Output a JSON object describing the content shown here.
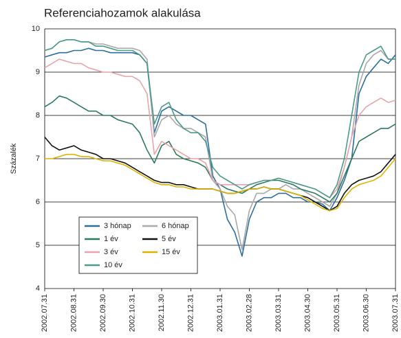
{
  "chart_data": {
    "type": "line",
    "title": "Referenciahozamok alakulása",
    "y_label": "Százalék",
    "categories": [
      "2002.07.31",
      null,
      null,
      null,
      "2002.08.31",
      null,
      null,
      null,
      "2002.09.30",
      null,
      null,
      null,
      "2002.10.31",
      null,
      null,
      null,
      "2002.11.30",
      null,
      null,
      null,
      "2002.12.31",
      null,
      null,
      null,
      "2003.01.31",
      null,
      null,
      null,
      "2003.02.28",
      null,
      null,
      null,
      "2003.03.31",
      null,
      null,
      null,
      "2003.04.30",
      null,
      null,
      null,
      "2003.05.31",
      null,
      null,
      null,
      "2003.06.30",
      null,
      null,
      null,
      "2003.07.31"
    ],
    "ylim": [
      4,
      10
    ],
    "yticks": [
      4,
      5,
      6,
      7,
      8,
      9,
      10
    ],
    "grid": true,
    "legend": "lower left",
    "series": [
      {
        "name": "3 hónap",
        "color": "#2b6e9b",
        "values": [
          9.35,
          9.4,
          9.45,
          9.45,
          9.5,
          9.5,
          9.55,
          9.5,
          9.5,
          9.45,
          9.45,
          9.45,
          9.45,
          9.4,
          9.2,
          7.6,
          8.1,
          8.2,
          8.1,
          8.0,
          8.0,
          7.9,
          7.8,
          6.6,
          6.3,
          5.6,
          5.3,
          4.75,
          5.6,
          6.0,
          6.1,
          6.1,
          6.2,
          6.2,
          6.1,
          6.1,
          6.0,
          6.0,
          5.95,
          5.8,
          6.1,
          6.5,
          7.0,
          8.5,
          8.9,
          9.1,
          9.3,
          9.2,
          9.4
        ]
      },
      {
        "name": "6 hónap",
        "color": "#a8a8a8",
        "values": [
          9.5,
          9.55,
          9.7,
          9.75,
          9.75,
          9.7,
          9.7,
          9.65,
          9.65,
          9.6,
          9.55,
          9.55,
          9.55,
          9.5,
          9.3,
          7.5,
          7.9,
          8.0,
          7.8,
          7.7,
          7.7,
          7.6,
          7.5,
          6.5,
          6.3,
          5.9,
          5.7,
          4.9,
          5.8,
          6.2,
          6.2,
          6.3,
          6.3,
          6.4,
          6.3,
          6.3,
          6.2,
          6.1,
          6.0,
          5.9,
          6.2,
          6.8,
          7.5,
          8.7,
          9.2,
          9.4,
          9.5,
          9.3,
          9.3
        ]
      },
      {
        "name": "1 év",
        "color": "#2d7a5e",
        "values": [
          8.2,
          8.3,
          8.45,
          8.4,
          8.3,
          8.2,
          8.1,
          8.1,
          8.0,
          8.0,
          7.9,
          7.85,
          7.8,
          7.6,
          7.2,
          6.9,
          7.3,
          7.4,
          7.1,
          7.0,
          6.95,
          6.9,
          6.8,
          6.5,
          6.4,
          6.3,
          6.25,
          6.2,
          6.3,
          6.4,
          6.45,
          6.5,
          6.5,
          6.45,
          6.4,
          6.3,
          6.25,
          6.2,
          6.1,
          6.0,
          6.2,
          6.6,
          7.0,
          7.4,
          7.5,
          7.6,
          7.7,
          7.7,
          7.8
        ]
      },
      {
        "name": "5 év",
        "color": "#111111",
        "values": [
          7.5,
          7.3,
          7.2,
          7.25,
          7.3,
          7.2,
          7.15,
          7.1,
          7.0,
          7.0,
          6.95,
          6.9,
          6.8,
          6.7,
          6.6,
          6.5,
          6.45,
          6.45,
          6.4,
          6.4,
          6.35,
          6.3,
          6.3,
          6.3,
          6.25,
          6.2,
          6.2,
          6.25,
          6.3,
          6.3,
          6.35,
          6.3,
          6.3,
          6.25,
          6.2,
          6.15,
          6.1,
          6.0,
          5.9,
          5.8,
          5.9,
          6.2,
          6.4,
          6.5,
          6.55,
          6.6,
          6.7,
          6.9,
          7.1
        ]
      },
      {
        "name": "3 év",
        "color": "#e8a4ab",
        "values": [
          9.1,
          9.2,
          9.3,
          9.25,
          9.2,
          9.2,
          9.1,
          9.05,
          9.0,
          9.0,
          8.95,
          8.9,
          8.9,
          8.8,
          8.5,
          7.1,
          7.4,
          7.3,
          7.2,
          7.1,
          7.0,
          7.0,
          6.9,
          6.5,
          6.4,
          6.4,
          6.4,
          6.4,
          6.4,
          6.45,
          6.5,
          6.5,
          6.55,
          6.5,
          6.45,
          6.4,
          6.35,
          6.3,
          6.2,
          6.1,
          6.3,
          6.8,
          7.5,
          8.0,
          8.2,
          8.3,
          8.4,
          8.3,
          8.35
        ]
      },
      {
        "name": "15 év",
        "color": "#dcb400",
        "values": [
          7.0,
          7.0,
          7.05,
          7.1,
          7.1,
          7.05,
          7.05,
          7.0,
          6.95,
          6.95,
          6.9,
          6.85,
          6.75,
          6.65,
          6.55,
          6.45,
          6.4,
          6.4,
          6.35,
          6.35,
          6.3,
          6.3,
          6.3,
          6.3,
          6.25,
          6.2,
          6.2,
          6.25,
          6.3,
          6.3,
          6.35,
          6.3,
          6.3,
          6.25,
          6.2,
          6.15,
          6.05,
          5.95,
          5.85,
          5.8,
          5.85,
          6.1,
          6.3,
          6.4,
          6.45,
          6.5,
          6.6,
          6.8,
          7.0
        ]
      },
      {
        "name": "10 év",
        "color": "#4a9a8a",
        "values": [
          9.5,
          9.55,
          9.7,
          9.75,
          9.75,
          9.7,
          9.7,
          9.6,
          9.6,
          9.55,
          9.5,
          9.5,
          9.5,
          9.4,
          9.2,
          7.8,
          8.2,
          8.3,
          7.9,
          7.7,
          7.6,
          7.6,
          7.4,
          6.8,
          6.6,
          6.5,
          6.4,
          6.3,
          6.4,
          6.45,
          6.5,
          6.5,
          6.55,
          6.5,
          6.45,
          6.4,
          6.35,
          6.3,
          6.2,
          6.1,
          6.4,
          7.0,
          8.0,
          9.0,
          9.4,
          9.5,
          9.6,
          9.3,
          9.3
        ]
      }
    ]
  }
}
